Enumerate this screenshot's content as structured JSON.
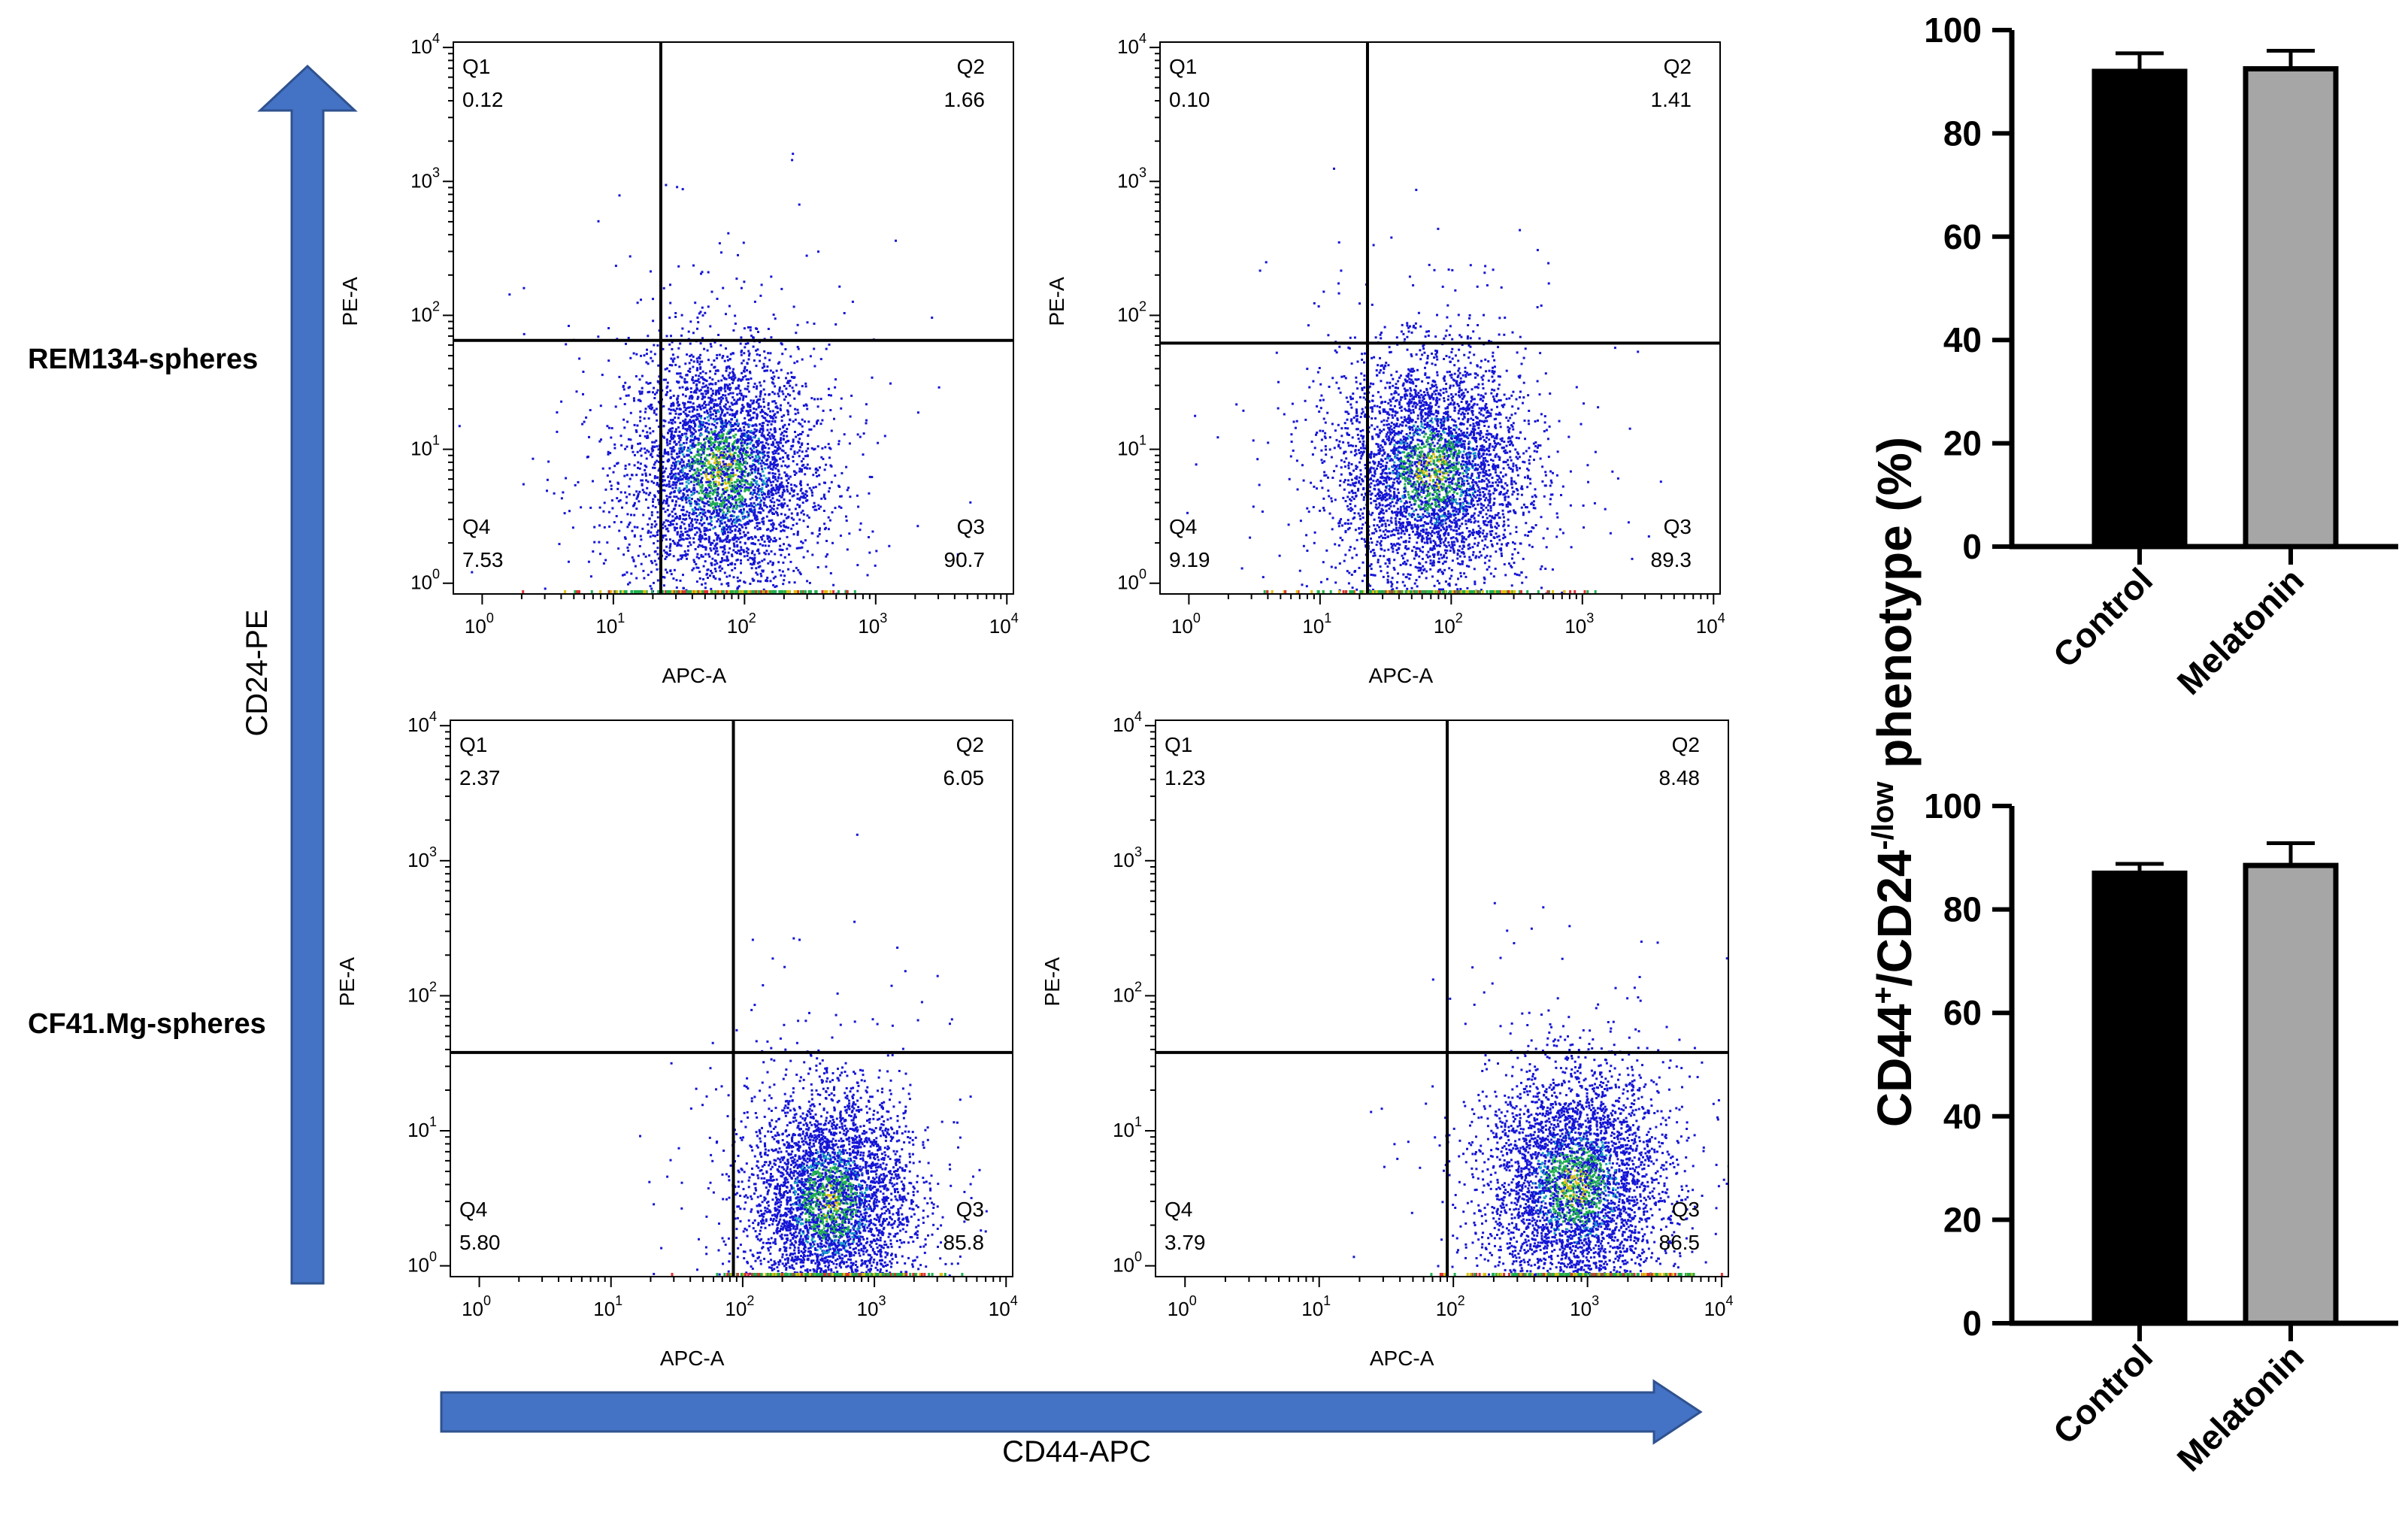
{
  "figure": {
    "row_labels": [
      "REM134-spheres",
      "CF41.Mg-spheres"
    ],
    "y_arrow_label": "CD24-PE",
    "x_arrow_label": "CD44-APC",
    "arrow_color": "#4472c4"
  },
  "flow_plots": [
    {
      "id": "rem134-control",
      "xlabel": "APC-A",
      "ylabel": "PE-A",
      "x_decades": [
        0,
        1,
        2,
        3,
        4
      ],
      "y_decades": [
        0,
        1,
        2,
        3,
        4
      ],
      "gate": {
        "x": 23,
        "y": 65
      },
      "quadrants": {
        "Q1": "0.12",
        "Q2": "1.66",
        "Q3": "90.7",
        "Q4": "7.53"
      },
      "cluster": {
        "x_center": 65,
        "y_center": 7,
        "x_spread_decades": 0.35,
        "y_spread_decades": 0.45
      }
    },
    {
      "id": "rem134-melatonin",
      "xlabel": "APC-A",
      "ylabel": "PE-A",
      "x_decades": [
        0,
        1,
        2,
        3,
        4
      ],
      "y_decades": [
        0,
        1,
        2,
        3,
        4
      ],
      "gate": {
        "x": 23,
        "y": 62
      },
      "quadrants": {
        "Q1": "0.10",
        "Q2": "1.41",
        "Q3": "89.3",
        "Q4": "9.19"
      },
      "cluster": {
        "x_center": 70,
        "y_center": 7,
        "x_spread_decades": 0.35,
        "y_spread_decades": 0.42
      }
    },
    {
      "id": "cf41-control",
      "xlabel": "APC-A",
      "ylabel": "PE-A",
      "x_decades": [
        0,
        1,
        2,
        3,
        4
      ],
      "y_decades": [
        0,
        1,
        2,
        3,
        4
      ],
      "gate": {
        "x": 85,
        "y": 38
      },
      "quadrants": {
        "Q1": "2.37",
        "Q2": "6.05",
        "Q3": "85.8",
        "Q4": "5.80"
      },
      "cluster": {
        "x_center": 450,
        "y_center": 3,
        "x_spread_decades": 0.3,
        "y_spread_decades": 0.4
      }
    },
    {
      "id": "cf41-melatonin",
      "xlabel": "APC-A",
      "ylabel": "PE-A",
      "x_decades": [
        0,
        1,
        2,
        3,
        4
      ],
      "y_decades": [
        0,
        1,
        2,
        3,
        4
      ],
      "gate": {
        "x": 90,
        "y": 38
      },
      "quadrants": {
        "Q1": "1.23",
        "Q2": "8.48",
        "Q3": "86.5",
        "Q4": "3.79"
      },
      "cluster": {
        "x_center": 800,
        "y_center": 4,
        "x_spread_decades": 0.32,
        "y_spread_decades": 0.42
      }
    }
  ],
  "chart_data": [
    {
      "type": "bar",
      "title": "",
      "ylabel": "CD44+/CD24-/low phenotype (%)",
      "categories": [
        "Control",
        "Melatonin"
      ],
      "values": [
        92,
        92.5
      ],
      "errors": [
        3.5,
        3.5
      ],
      "colors": [
        "#000000",
        "#a6a6a6"
      ],
      "ylim": [
        0,
        100
      ],
      "yticks": [
        0,
        20,
        40,
        60,
        80,
        100
      ]
    },
    {
      "type": "bar",
      "title": "",
      "ylabel": "CD44+/CD24-/low phenotype (%)",
      "categories": [
        "Control",
        "Melatonin"
      ],
      "values": [
        87,
        88.5
      ],
      "errors": [
        1.8,
        4.3
      ],
      "colors": [
        "#000000",
        "#a6a6a6"
      ],
      "ylim": [
        0,
        100
      ],
      "yticks": [
        0,
        20,
        40,
        60,
        80,
        100
      ]
    }
  ],
  "bar_ylabel": {
    "part1": "CD44",
    "sup1": "+",
    "part2": "/CD24",
    "sup2": "-/low",
    "part3": " phenotype (%)"
  }
}
